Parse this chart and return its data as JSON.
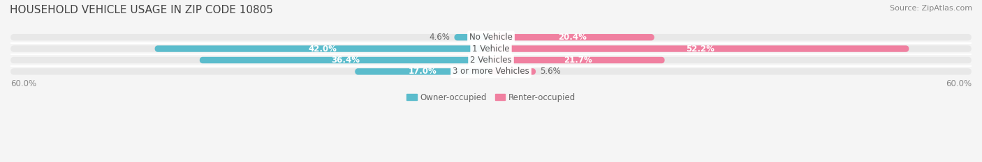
{
  "title": "HOUSEHOLD VEHICLE USAGE IN ZIP CODE 10805",
  "source": "Source: ZipAtlas.com",
  "categories": [
    "No Vehicle",
    "1 Vehicle",
    "2 Vehicles",
    "3 or more Vehicles"
  ],
  "owner_values": [
    4.6,
    42.0,
    36.4,
    17.0
  ],
  "renter_values": [
    20.4,
    52.2,
    21.7,
    5.6
  ],
  "owner_color": "#5bbccc",
  "renter_color": "#f080a0",
  "owner_label": "Owner-occupied",
  "renter_label": "Renter-occupied",
  "axis_max": 60.0,
  "axis_label": "60.0%",
  "background_color": "#f5f5f5",
  "bar_bg_color": "#e8e8e8",
  "title_fontsize": 11,
  "source_fontsize": 8,
  "label_fontsize": 8.5,
  "category_fontsize": 8.5
}
